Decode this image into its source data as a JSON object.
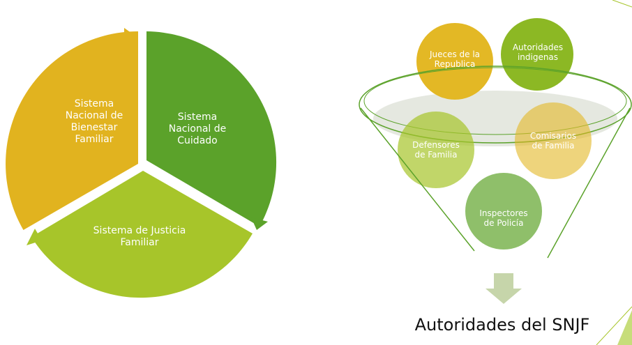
{
  "cycle": {
    "segments": [
      {
        "label": "Sistema Nacional de Bienestar Familiar"
      },
      {
        "label": "Sistema Nacional de Cuidado"
      },
      {
        "label": "Sistema de Justicia Familiar"
      }
    ]
  },
  "funnel": {
    "items": [
      {
        "label": "Jueces de la Republica"
      },
      {
        "label": "Autoridades indigenas"
      },
      {
        "label": "Defensores de Familia"
      },
      {
        "label": "Comisarios de Familia"
      },
      {
        "label": "Inspectores de Policía"
      }
    ],
    "result": "Autoridades del SNJF"
  }
}
